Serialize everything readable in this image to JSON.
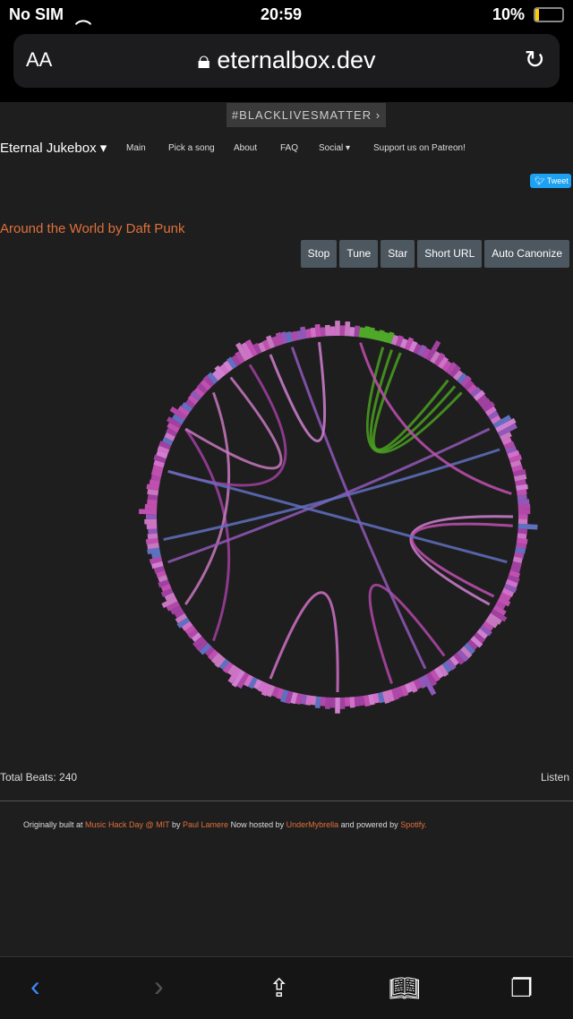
{
  "status": {
    "carrier": "No SIM",
    "time": "20:59",
    "battery": "10%"
  },
  "browser": {
    "aa": "AA",
    "url": "eternalbox.dev"
  },
  "banner": "#BLACKLIVESMATTER ›",
  "nav": {
    "brand": "Eternal Jukebox ▾",
    "items": [
      "Main",
      "Pick a song",
      "About",
      "FAQ",
      "Social ▾",
      "Support us on Patreon!"
    ]
  },
  "tweet": "Tweet",
  "song_title": "Around the World by Daft Punk",
  "buttons": [
    "Stop",
    "Tune",
    "Star",
    "Short URL",
    "Auto Canonize"
  ],
  "total_beats": "Total Beats: 240",
  "listen": "Listen",
  "footer": {
    "t1": "Originally built at ",
    "l1": "Music Hack Day @ MIT",
    "t2": " by ",
    "l2": "Paul Lamere",
    "t3": " Now hosted by ",
    "l3": "UnderMybrella",
    "t4": " and powered by ",
    "l4": "Spotify."
  },
  "colors": {
    "accent": "#e0703a",
    "button": "#4d5760"
  }
}
